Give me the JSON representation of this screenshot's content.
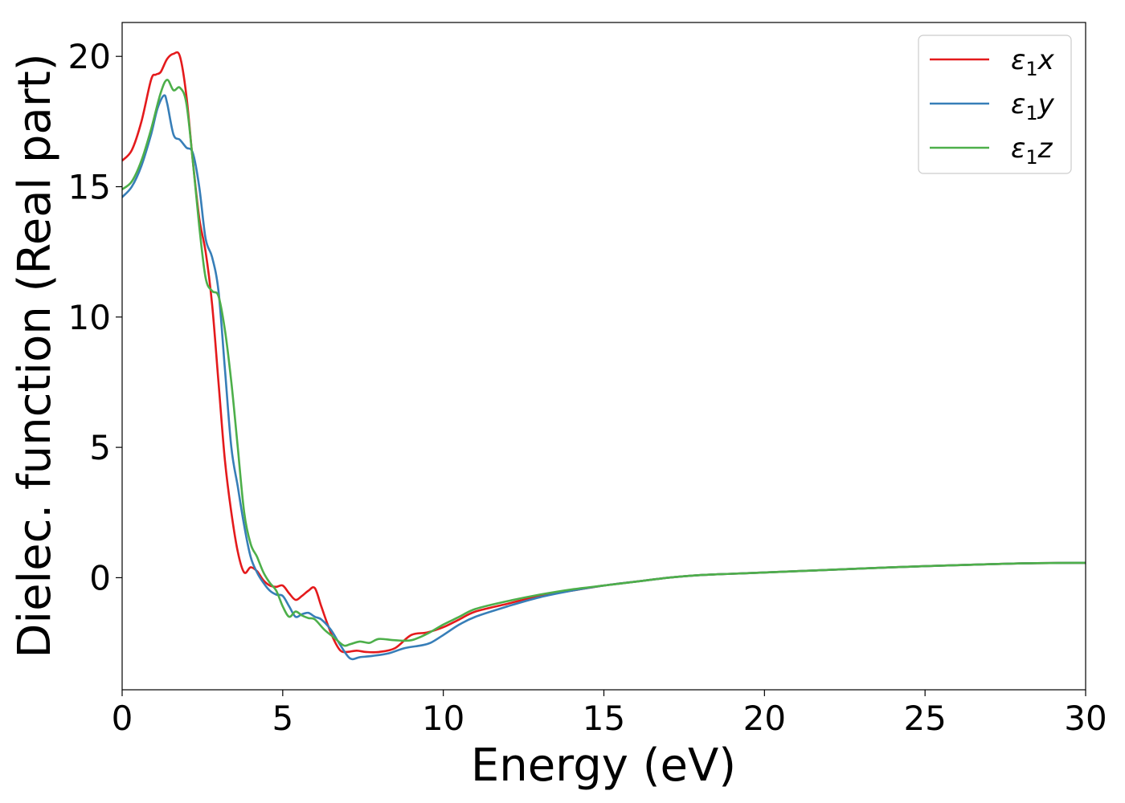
{
  "chart_data": {
    "type": "line",
    "title": "",
    "xlabel": "Energy (eV)",
    "ylabel": "Dielec. function (Real part)",
    "xlim": [
      0,
      30
    ],
    "ylim": [
      -4.3,
      21.3
    ],
    "xticks": [
      0,
      5,
      10,
      15,
      20,
      25,
      30
    ],
    "yticks": [
      0,
      5,
      10,
      15,
      20
    ],
    "grid": false,
    "legend_position": "top-right",
    "series": [
      {
        "name": "ε1x",
        "legend": {
          "base": "ε",
          "sub": "1",
          "var": "x"
        },
        "color": "#e41a1c",
        "x": [
          0,
          0.3,
          0.6,
          0.9,
          1.05,
          1.2,
          1.4,
          1.6,
          1.8,
          2.0,
          2.2,
          2.4,
          2.6,
          2.8,
          3.0,
          3.2,
          3.4,
          3.6,
          3.8,
          4.0,
          4.2,
          4.4,
          4.6,
          4.8,
          5.0,
          5.2,
          5.4,
          5.6,
          5.8,
          6.0,
          6.2,
          6.4,
          6.6,
          6.8,
          7.0,
          7.3,
          7.6,
          8.0,
          8.5,
          9.0,
          9.5,
          10.0,
          10.5,
          11.0,
          12.0,
          13.0,
          14.0,
          15.0,
          16.0,
          17.0,
          18.0,
          19.0,
          20.0,
          22.0,
          24.0,
          26.0,
          28.0,
          30.0
        ],
        "y": [
          16.0,
          16.4,
          17.5,
          19.1,
          19.3,
          19.4,
          19.9,
          20.1,
          20.0,
          18.5,
          16.0,
          13.8,
          12.5,
          10.5,
          7.5,
          4.5,
          2.5,
          1.0,
          0.2,
          0.4,
          0.25,
          -0.1,
          -0.3,
          -0.35,
          -0.3,
          -0.6,
          -0.85,
          -0.7,
          -0.5,
          -0.4,
          -1.1,
          -1.8,
          -2.4,
          -2.8,
          -2.85,
          -2.8,
          -2.85,
          -2.85,
          -2.7,
          -2.2,
          -2.1,
          -1.9,
          -1.6,
          -1.3,
          -1.0,
          -0.7,
          -0.5,
          -0.3,
          -0.15,
          0.0,
          0.1,
          0.15,
          0.2,
          0.3,
          0.4,
          0.48,
          0.55,
          0.57
        ]
      },
      {
        "name": "ε1y",
        "legend": {
          "base": "ε",
          "sub": "1",
          "var": "y"
        },
        "color": "#377eb8",
        "x": [
          0,
          0.3,
          0.6,
          0.9,
          1.1,
          1.3,
          1.4,
          1.6,
          1.8,
          2.0,
          2.2,
          2.4,
          2.6,
          2.8,
          3.0,
          3.2,
          3.4,
          3.6,
          3.8,
          4.0,
          4.2,
          4.4,
          4.6,
          4.8,
          5.0,
          5.2,
          5.4,
          5.6,
          5.8,
          6.0,
          6.2,
          6.5,
          6.8,
          7.1,
          7.4,
          7.8,
          8.3,
          8.8,
          9.3,
          9.6,
          10.0,
          10.5,
          11.0,
          12.0,
          13.0,
          14.0,
          15.0,
          16.0,
          17.0,
          18.0,
          19.0,
          20.0,
          22.0,
          24.0,
          26.0,
          28.0,
          30.0
        ],
        "y": [
          14.6,
          15.0,
          15.8,
          17.0,
          18.0,
          18.5,
          18.2,
          17.0,
          16.8,
          16.5,
          16.3,
          15.0,
          13.0,
          12.3,
          11.0,
          8.0,
          5.0,
          3.5,
          2.0,
          0.8,
          0.2,
          -0.2,
          -0.5,
          -0.65,
          -0.7,
          -1.1,
          -1.5,
          -1.4,
          -1.35,
          -1.5,
          -1.6,
          -2.0,
          -2.6,
          -3.1,
          -3.05,
          -3.0,
          -2.9,
          -2.7,
          -2.6,
          -2.5,
          -2.2,
          -1.8,
          -1.5,
          -1.1,
          -0.75,
          -0.5,
          -0.3,
          -0.15,
          0.0,
          0.1,
          0.15,
          0.2,
          0.3,
          0.4,
          0.48,
          0.55,
          0.57
        ]
      },
      {
        "name": "ε1z",
        "legend": {
          "base": "ε",
          "sub": "1",
          "var": "z"
        },
        "color": "#4daf4a",
        "x": [
          0,
          0.3,
          0.6,
          0.9,
          1.2,
          1.4,
          1.6,
          1.8,
          2.0,
          2.2,
          2.4,
          2.6,
          2.8,
          3.0,
          3.2,
          3.4,
          3.6,
          3.8,
          4.0,
          4.2,
          4.4,
          4.6,
          4.8,
          5.0,
          5.2,
          5.4,
          5.6,
          5.8,
          6.0,
          6.3,
          6.6,
          6.9,
          7.1,
          7.4,
          7.7,
          8.0,
          8.5,
          9.0,
          9.5,
          10.0,
          10.5,
          11.0,
          12.0,
          13.0,
          14.0,
          15.0,
          16.0,
          17.0,
          18.0,
          19.0,
          20.0,
          22.0,
          24.0,
          26.0,
          28.0,
          30.0
        ],
        "y": [
          14.9,
          15.2,
          16.0,
          17.2,
          18.6,
          19.1,
          18.7,
          18.8,
          18.2,
          16.0,
          13.5,
          11.5,
          11.0,
          10.8,
          9.5,
          7.5,
          5.0,
          2.5,
          1.3,
          0.8,
          0.2,
          -0.2,
          -0.5,
          -1.1,
          -1.5,
          -1.3,
          -1.45,
          -1.55,
          -1.6,
          -2.0,
          -2.3,
          -2.6,
          -2.55,
          -2.45,
          -2.5,
          -2.35,
          -2.4,
          -2.4,
          -2.15,
          -1.8,
          -1.5,
          -1.2,
          -0.9,
          -0.65,
          -0.45,
          -0.3,
          -0.15,
          0.0,
          0.1,
          0.15,
          0.2,
          0.3,
          0.4,
          0.48,
          0.55,
          0.57
        ]
      }
    ]
  }
}
